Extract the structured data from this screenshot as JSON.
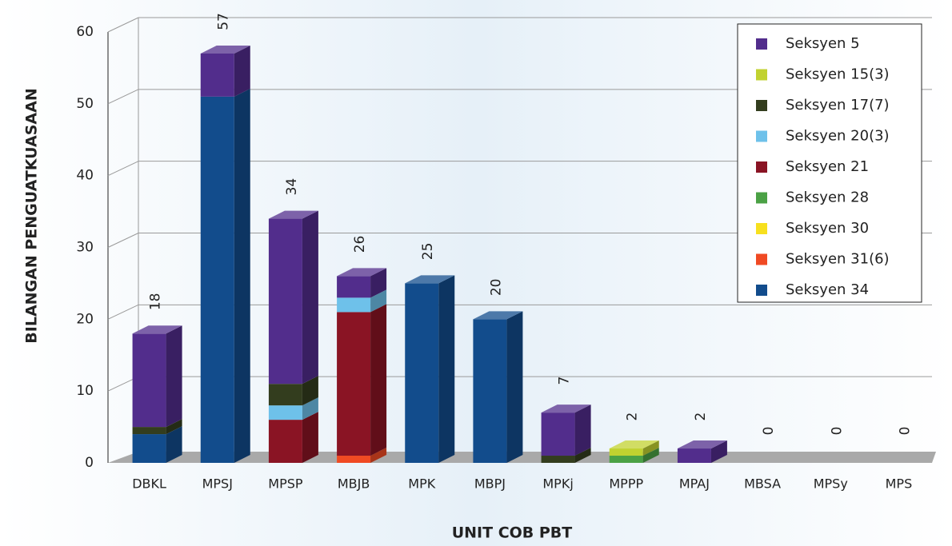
{
  "chart_data": {
    "type": "bar3d_stacked",
    "x_label": "UNIT COB PBT",
    "y_label": "BILANGAN PENGUATKUASAAN",
    "categories": [
      "DBKL",
      "MPSJ",
      "MPSP",
      "MBJB",
      "MPK",
      "MBPJ",
      "MPKj",
      "MPPP",
      "MPAJ",
      "MBSA",
      "MPSy",
      "MPS"
    ],
    "series": [
      {
        "name": "Seksyen 34",
        "color": "#124c8c",
        "values": [
          4,
          51,
          0,
          0,
          25,
          20,
          0,
          0,
          0,
          0,
          0,
          0
        ]
      },
      {
        "name": "Seksyen 31(6)",
        "color": "#f04a23",
        "values": [
          0,
          0,
          0,
          1,
          0,
          0,
          0,
          0,
          0,
          0,
          0,
          0
        ]
      },
      {
        "name": "Seksyen 30",
        "color": "#f7e01e",
        "values": [
          0,
          0,
          0,
          0,
          0,
          0,
          0,
          0,
          0,
          0,
          0,
          0
        ]
      },
      {
        "name": "Seksyen 28",
        "color": "#4ba145",
        "values": [
          0,
          0,
          0,
          0,
          0,
          0,
          0,
          1,
          0,
          0,
          0,
          0
        ]
      },
      {
        "name": "Seksyen 21",
        "color": "#8a1424",
        "values": [
          0,
          0,
          6,
          20,
          0,
          0,
          0,
          0,
          0,
          0,
          0,
          0
        ]
      },
      {
        "name": "Seksyen 20(3)",
        "color": "#6ec1ea",
        "values": [
          0,
          0,
          2,
          2,
          0,
          0,
          0,
          0,
          0,
          0,
          0,
          0
        ]
      },
      {
        "name": "Seksyen 17(7)",
        "color": "#333d1e",
        "values": [
          1,
          0,
          3,
          0,
          0,
          0,
          1,
          0,
          0,
          0,
          0,
          0
        ]
      },
      {
        "name": "Seksyen 15(3)",
        "color": "#c1d230",
        "values": [
          0,
          0,
          0,
          0,
          0,
          0,
          0,
          1,
          0,
          0,
          0,
          0
        ]
      },
      {
        "name": "Seksyen 5",
        "color": "#522d8c",
        "values": [
          13,
          6,
          23,
          3,
          0,
          0,
          6,
          0,
          2,
          0,
          0,
          0
        ]
      }
    ],
    "totals": [
      18,
      57,
      34,
      26,
      25,
      20,
      7,
      2,
      2,
      0,
      0,
      0
    ],
    "ylim": [
      0,
      60
    ],
    "yticks": [
      0,
      10,
      20,
      30,
      40,
      50,
      60
    ],
    "grid": true,
    "legend": "top-right"
  }
}
